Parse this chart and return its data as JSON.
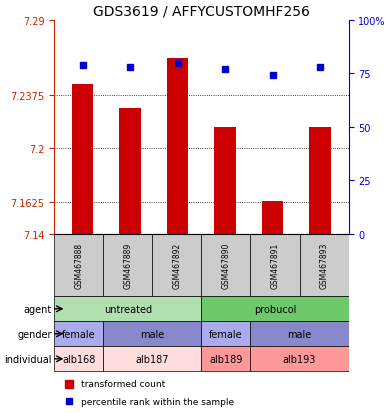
{
  "title": "GDS3619 / AFFYCUSTOMHF256",
  "samples": [
    "GSM467888",
    "GSM467889",
    "GSM467892",
    "GSM467890",
    "GSM467891",
    "GSM467893"
  ],
  "bar_values": [
    7.245,
    7.228,
    7.263,
    7.215,
    7.163,
    7.215
  ],
  "percentile_values": [
    79,
    78,
    80,
    77,
    74,
    78
  ],
  "ymin": 7.14,
  "ymax": 7.29,
  "yticks": [
    7.14,
    7.1625,
    7.2,
    7.2375,
    7.29
  ],
  "ytick_labels": [
    "7.14",
    "7.1625",
    "7.2",
    "7.2375",
    "7.29"
  ],
  "right_yticks": [
    0,
    25,
    50,
    75,
    100
  ],
  "right_ytick_labels": [
    "0",
    "25",
    "50",
    "75",
    "100%"
  ],
  "bar_color": "#cc0000",
  "dot_color": "#0000cc",
  "agent_untreated_color": "#aaddaa",
  "agent_probucol_color": "#44bb44",
  "gender_female_color": "#aaaaee",
  "gender_male_color": "#8888cc",
  "individual_alb168_color": "#ffbbbb",
  "individual_alb187_color": "#ffbbbb",
  "individual_alb189_color": "#ff9999",
  "individual_alb193_color": "#ff9999",
  "agent_row": [
    [
      "untreated",
      3,
      "#b2dfb0"
    ],
    [
      "probucol",
      3,
      "#6dc96b"
    ]
  ],
  "gender_row": [
    [
      "female",
      1
    ],
    [
      "male",
      2
    ],
    [
      "female",
      1
    ],
    [
      "male",
      2
    ]
  ],
  "individual_row": [
    [
      "alb168",
      1
    ],
    [
      "alb187",
      2
    ],
    [
      "alb189",
      1
    ],
    [
      "alb193",
      2
    ]
  ],
  "legend_bar_label": "transformed count",
  "legend_dot_label": "percentile rank within the sample",
  "left_color": "#cc2200",
  "right_color": "#0000cc"
}
